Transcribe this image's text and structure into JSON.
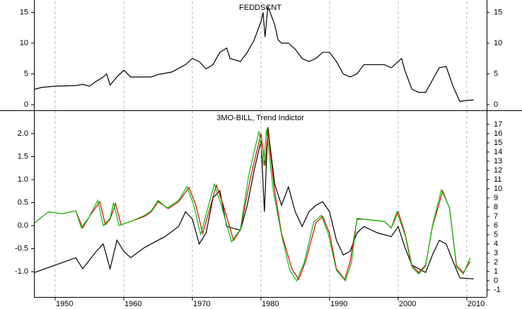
{
  "chart_data": [
    {
      "type": "line",
      "title": "FEDDSCNT",
      "xlim": [
        1946.9,
        2012.9
      ],
      "ylim": [
        -0.92,
        16.78
      ],
      "yticks": [
        0,
        5,
        10,
        15
      ],
      "series": [
        {
          "color": "#000000",
          "x": [
            1947,
            1948,
            1950,
            1953,
            1954,
            1955,
            1956,
            1957,
            1957.5,
            1958,
            1959,
            1960,
            1961,
            1964,
            1965,
            1967,
            1968,
            1969,
            1970,
            1971,
            1972,
            1973,
            1974,
            1975,
            1975.5,
            1977,
            1978,
            1979,
            1980,
            1980.3,
            1980.6,
            1981,
            1982,
            1982.5,
            1983,
            1984,
            1985,
            1986,
            1987,
            1988,
            1989,
            1990,
            1991,
            1992,
            1993,
            1994,
            1995,
            1998,
            1999,
            2000,
            2000.5,
            2001,
            2002,
            2003,
            2004,
            2005,
            2006,
            2007,
            2008,
            2009,
            2010,
            2011
          ],
          "values": [
            2.5,
            2.8,
            3.0,
            3.1,
            3.3,
            3.0,
            3.8,
            4.5,
            5.0,
            3.2,
            4.5,
            5.6,
            4.5,
            4.5,
            4.9,
            5.3,
            5.9,
            6.5,
            7.5,
            7.0,
            5.8,
            6.5,
            8.5,
            9.2,
            7.5,
            7.0,
            8.5,
            10.5,
            13.5,
            15,
            11,
            16,
            13,
            10.5,
            10,
            10,
            9.0,
            7.5,
            7.0,
            7.5,
            8.5,
            8.5,
            7.0,
            5.0,
            4.5,
            5.0,
            6.5,
            6.5,
            6.0,
            7.0,
            7.5,
            5.5,
            2.5,
            2.0,
            2.0,
            4.0,
            6.0,
            6.2,
            3.0,
            0.5,
            0.7,
            0.75
          ]
        }
      ]
    },
    {
      "type": "line",
      "title": "3MO-BILL, Trend Indictor",
      "xlim": [
        1946.9,
        2012.9
      ],
      "xticks": [
        1950,
        1960,
        1970,
        1980,
        1990,
        2000,
        2010
      ],
      "ylim": [
        -1.55,
        2.49
      ],
      "yticks": [
        {
          "value": -1,
          "label": "-1.0"
        },
        -0.5,
        {
          "value": 0,
          "label": "0.0"
        },
        0.5,
        {
          "value": 1,
          "label": "1.0"
        },
        1.5,
        {
          "value": 2,
          "label": "2.0"
        }
      ],
      "y2lim": [
        -1.77,
        18.46
      ],
      "y2ticks": [
        -1,
        0,
        1,
        2,
        3,
        4,
        5,
        6,
        7,
        8,
        9,
        10,
        11,
        12,
        13,
        14,
        15,
        16,
        17
      ],
      "series": [
        {
          "color": "#000000",
          "axis": "y2",
          "x": [
            1947,
            1950,
            1953,
            1954,
            1956,
            1957,
            1958,
            1959,
            1960,
            1961,
            1963,
            1966,
            1968,
            1969,
            1970,
            1971,
            1972,
            1973,
            1974,
            1975,
            1977,
            1978,
            1979,
            1980,
            1980.5,
            1981,
            1982,
            1983,
            1984,
            1985,
            1986,
            1987,
            1988,
            1989,
            1990,
            1991,
            1992,
            1993,
            1994,
            1995,
            1997,
            1999,
            2000,
            2001,
            2002,
            2004,
            2005,
            2006,
            2007,
            2008,
            2009,
            2011
          ],
          "values": [
            0.9,
            1.7,
            2.5,
            1.3,
            3.2,
            4.0,
            1.3,
            4.4,
            3.2,
            2.5,
            3.6,
            4.8,
            5.9,
            7.5,
            6.7,
            4.0,
            5.2,
            9.0,
            9.8,
            5.9,
            5.5,
            8.2,
            12,
            15.2,
            7.5,
            16.7,
            10.5,
            8.2,
            10.2,
            7.5,
            5.9,
            7.5,
            8.2,
            8.6,
            7.5,
            4.4,
            2.8,
            3.2,
            5.2,
            5.9,
            5.2,
            4.8,
            5.9,
            3.6,
            1.7,
            0.9,
            2.8,
            4.4,
            4.0,
            2.1,
            0.3,
            0.2
          ]
        },
        {
          "color": "#e00000",
          "x": [
            1947,
            1949,
            1951,
            1953,
            1954,
            1955,
            1956.5,
            1957.3,
            1958,
            1958.8,
            1959.6,
            1961,
            1963,
            1964,
            1965,
            1966.5,
            1968,
            1969.5,
            1970.5,
            1971.5,
            1973.5,
            1974.5,
            1976,
            1977,
            1978.5,
            1980,
            1980.6,
            1981,
            1982,
            1983,
            1984.5,
            1985.5,
            1986.5,
            1988,
            1989,
            1990,
            1991,
            1992.2,
            1993,
            1994,
            1995,
            1998,
            1999,
            2000,
            2001,
            2002,
            2003,
            2004,
            2005,
            2006.5,
            2007.5,
            2008.5,
            2009.5,
            2010.5
          ],
          "values": [
            0.06,
            0.3,
            0.26,
            0.32,
            -0.05,
            0.2,
            0.52,
            0.02,
            0.14,
            0.48,
            0.02,
            0.09,
            0.2,
            0.3,
            0.52,
            0.37,
            0.52,
            0.83,
            0.45,
            -0.17,
            0.88,
            0.45,
            -0.32,
            -0.09,
            1.06,
            2.0,
            1.3,
            2.06,
            0.75,
            -0.17,
            -0.94,
            -1.17,
            -0.78,
            0.06,
            0.2,
            -0.17,
            -0.94,
            -1.17,
            -0.78,
            0.14,
            0.14,
            0.09,
            -0.05,
            0.3,
            -0.17,
            -0.86,
            -1.02,
            -0.86,
            -0.02,
            0.75,
            0.37,
            -0.86,
            -1.02,
            -0.78
          ]
        },
        {
          "color": "#00c000",
          "x": [
            1947,
            1949,
            1951,
            1953,
            1953.8,
            1955,
            1956.2,
            1957,
            1958,
            1958.5,
            1959.3,
            1961,
            1963,
            1964,
            1965,
            1966.3,
            1968,
            1969.2,
            1970.2,
            1971.2,
            1973.2,
            1974.2,
            1975.7,
            1977,
            1978.2,
            1979.7,
            1980.4,
            1980.8,
            1981.8,
            1983,
            1984.2,
            1985.2,
            1986.3,
            1987.7,
            1988.8,
            1989.8,
            1991,
            1992.3,
            1993.2,
            1994,
            1995,
            1998,
            1999,
            1999.8,
            2001,
            2002,
            2003,
            2004,
            2005,
            2006.3,
            2007.5,
            2008.5,
            2009.5,
            2010.5
          ],
          "values": [
            0.06,
            0.3,
            0.26,
            0.32,
            -0.05,
            0.2,
            0.55,
            0.0,
            0.16,
            0.5,
            0.0,
            0.09,
            0.22,
            0.32,
            0.55,
            0.38,
            0.55,
            0.85,
            0.45,
            -0.2,
            0.9,
            0.45,
            -0.35,
            -0.08,
            1.08,
            2.05,
            1.3,
            2.1,
            0.75,
            -0.2,
            -0.97,
            -1.2,
            -0.8,
            0.08,
            0.22,
            -0.17,
            -0.97,
            -1.2,
            -0.8,
            0.16,
            0.14,
            0.09,
            -0.05,
            0.3,
            -0.2,
            -0.9,
            -1.05,
            -0.88,
            0.0,
            0.78,
            0.38,
            -0.9,
            -1.05,
            -0.7
          ]
        }
      ]
    }
  ]
}
